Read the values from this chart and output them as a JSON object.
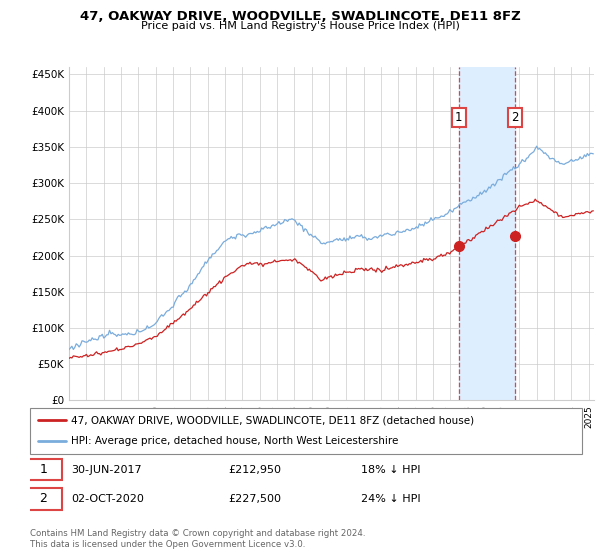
{
  "title": "47, OAKWAY DRIVE, WOODVILLE, SWADLINCOTE, DE11 8FZ",
  "subtitle": "Price paid vs. HM Land Registry's House Price Index (HPI)",
  "legend_line1": "47, OAKWAY DRIVE, WOODVILLE, SWADLINCOTE, DE11 8FZ (detached house)",
  "legend_line2": "HPI: Average price, detached house, North West Leicestershire",
  "annotation1_date": "30-JUN-2017",
  "annotation1_price": "£212,950",
  "annotation1_hpi": "18% ↓ HPI",
  "annotation2_date": "02-OCT-2020",
  "annotation2_price": "£227,500",
  "annotation2_hpi": "24% ↓ HPI",
  "footer": "Contains HM Land Registry data © Crown copyright and database right 2024.\nThis data is licensed under the Open Government Licence v3.0.",
  "hpi_color": "#7aacdc",
  "price_color": "#cc2222",
  "highlight_color": "#ddeeff",
  "vline_color": "#dd4444",
  "ylim_min": 0,
  "ylim_max": 460000,
  "sale1_year": 2017.5,
  "sale1_value": 212950,
  "sale2_year": 2020.75,
  "sale2_value": 227500,
  "xmin": 1995,
  "xmax": 2025.3
}
